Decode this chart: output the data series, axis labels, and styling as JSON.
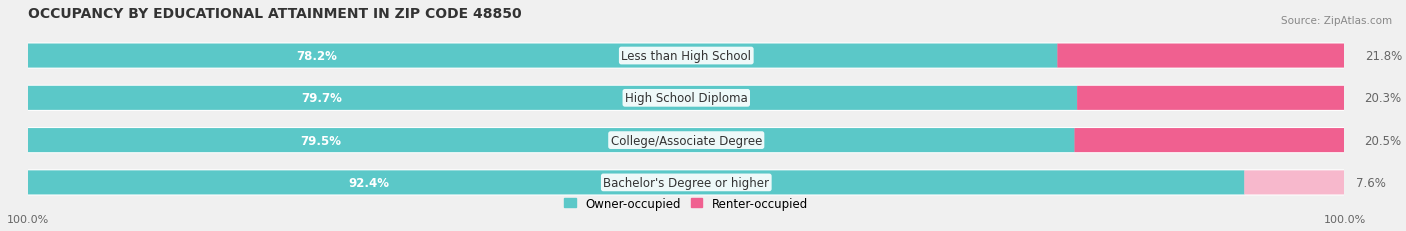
{
  "title": "OCCUPANCY BY EDUCATIONAL ATTAINMENT IN ZIP CODE 48850",
  "source": "Source: ZipAtlas.com",
  "categories": [
    "Less than High School",
    "High School Diploma",
    "College/Associate Degree",
    "Bachelor's Degree or higher"
  ],
  "owner_pct": [
    78.2,
    79.7,
    79.5,
    92.4
  ],
  "renter_pct": [
    21.8,
    20.3,
    20.5,
    7.6
  ],
  "owner_color": "#5bc8c8",
  "renter_color": "#f06090",
  "renter_color_light": "#f7b8cc",
  "bg_color": "#f0f0f0",
  "bar_bg_color": "#e0e0e8",
  "bar_height": 0.55,
  "title_fontsize": 10,
  "label_fontsize": 8.5,
  "tick_fontsize": 8,
  "source_fontsize": 7.5
}
